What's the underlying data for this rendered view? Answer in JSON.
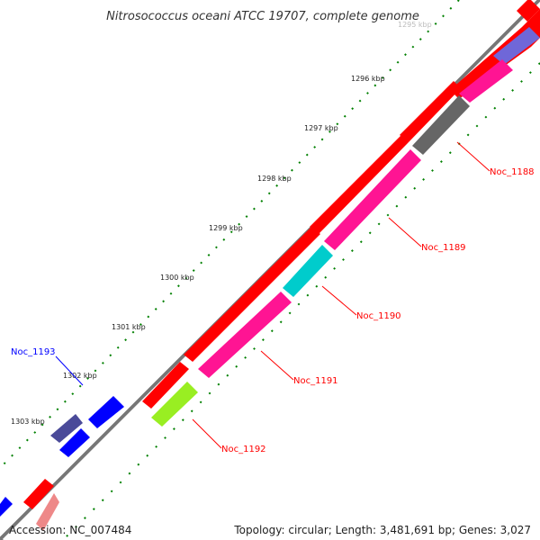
{
  "title": "Nitrosococcus oceani ATCC 19707, complete genome",
  "accession": "Accession: NC_007484",
  "summary": "Topology: circular; Length: 3,481,691 bp; Genes: 3,027",
  "tick_labels": [
    "1295 kbp",
    "1296 kbp",
    "1297 kbp",
    "1298 kbp",
    "1299 kbp",
    "1300 kbp",
    "1301 kbp",
    "1302 kbp",
    "1303 kbp"
  ],
  "gene_labels": [
    "Noc_1188",
    "Noc_1189",
    "Noc_1190",
    "Noc_1191",
    "Noc_1192",
    "Noc_1193"
  ],
  "colors": {
    "cds_forward": "#ff0000",
    "cds_reverse": "#0000ff",
    "backbone": "#777777",
    "tick": "#006400",
    "label_line_red": "#ff0000",
    "label_line_blue": "#0000ff",
    "magenta": "#ff1493",
    "cyan": "#00cccc",
    "grey": "#666666",
    "lime": "#99ee22",
    "slate": "#6f67d8",
    "dark_slate": "#4a4a99"
  }
}
